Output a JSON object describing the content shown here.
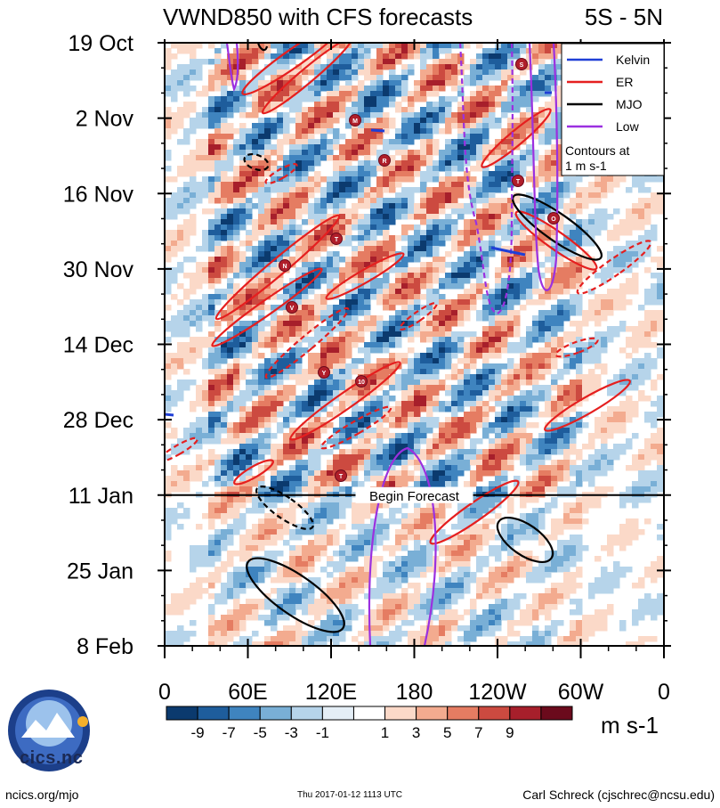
{
  "chart_data": {
    "type": "heatmap",
    "title": "VWND850 with CFS forecasts",
    "region": "5S - 5N",
    "xlabel": "",
    "ylabel": "",
    "x_ticks": [
      "0",
      "60E",
      "120E",
      "180",
      "120W",
      "60W",
      "0"
    ],
    "x_range": [
      0,
      360
    ],
    "y_ticks": [
      "19 Oct",
      "2 Nov",
      "16 Nov",
      "30 Nov",
      "14 Dec",
      "28 Dec",
      "11 Jan",
      "25 Jan",
      "8 Feb"
    ],
    "y_range_days": [
      0,
      112
    ],
    "forecast_start_label": "Begin Forecast",
    "forecast_start_tick": "11 Jan",
    "colorbar": {
      "unit": "m s-1",
      "labels": [
        "-9",
        "-7",
        "-5",
        "-3",
        "-1",
        "1",
        "3",
        "5",
        "7",
        "9"
      ],
      "colors": [
        "#0b3a6e",
        "#1e5d9c",
        "#3f84bf",
        "#79afd6",
        "#b6d4ea",
        "#e4eef6",
        "#ffffff",
        "#fbd9c8",
        "#f3ab8f",
        "#e57c62",
        "#cc4a40",
        "#a71f2b",
        "#6b0a1c"
      ]
    },
    "legend": {
      "placement": "top-right",
      "entries": [
        {
          "name": "Kelvin",
          "color": "#1f3fd6"
        },
        {
          "name": "ER",
          "color": "#e51f1f"
        },
        {
          "name": "MJO",
          "color": "#000000"
        },
        {
          "name": "Low",
          "color": "#9b30e0"
        }
      ],
      "note_line1": "Contours at",
      "note_line2": "1 m s-1"
    },
    "storm_markers": [
      "S",
      "M",
      "R",
      "T",
      "T",
      "N",
      "V",
      "Y",
      "O",
      "10",
      "T"
    ]
  },
  "footer": {
    "url": "ncics.org/mjo",
    "timestamp": "Thu 2017-01-12 1113 UTC",
    "credit": "Carl Schreck (cjschrec@ncsu.edu)",
    "logo_text": "cics.nc"
  }
}
